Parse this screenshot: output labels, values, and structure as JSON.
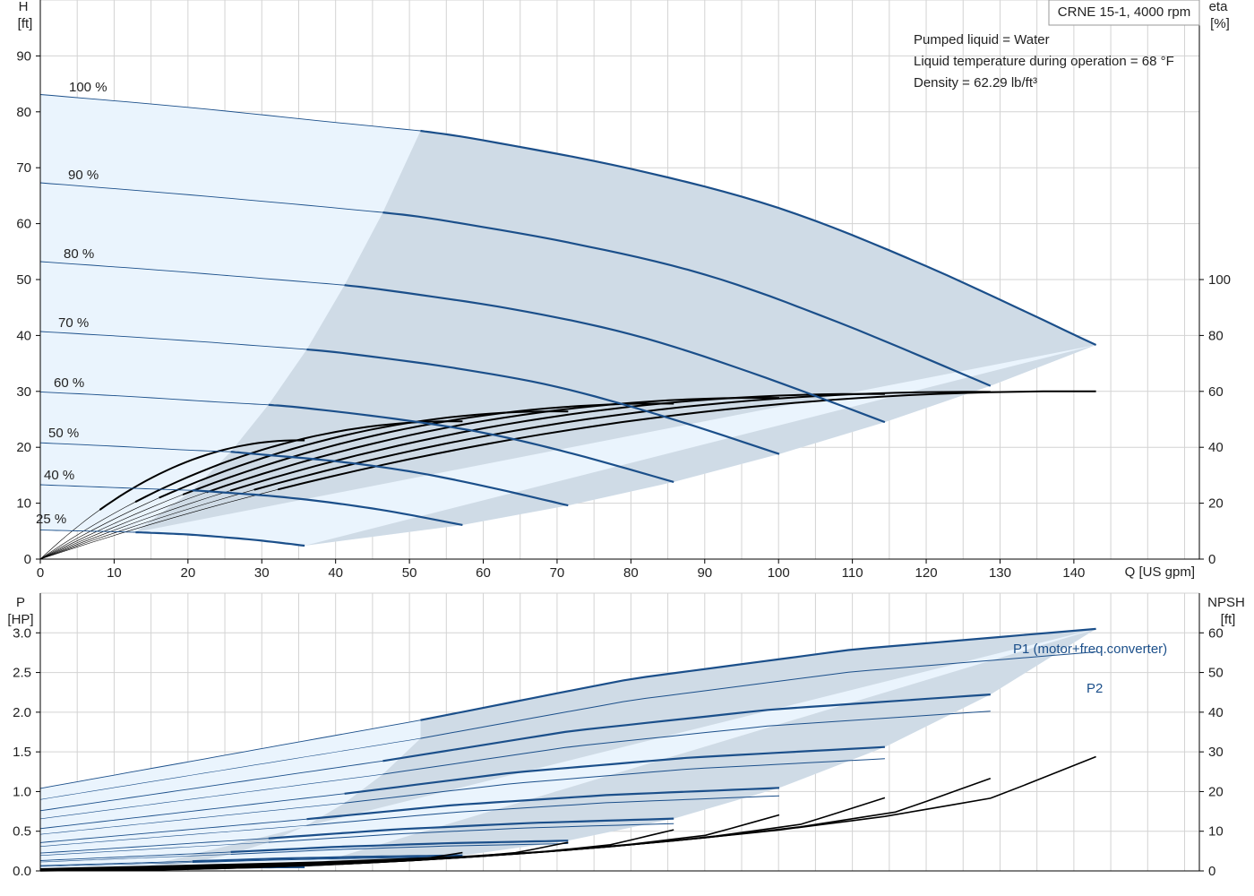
{
  "chart_data": [
    {
      "type": "line",
      "title": "CRNE 15-1, 4000 rpm",
      "notes": [
        "Pumped liquid = Water",
        "Liquid temperature during operation = 68 °F",
        "Density = 62.29 lb/ft³"
      ],
      "xlabel": "Q [US gpm]",
      "ylabel": "H [ft]",
      "ylabel_unit": "H",
      "ylabel_unit2": "[ft]",
      "y2label": "eta [%]",
      "y2label_unit": "eta",
      "y2label_unit2": "[%]",
      "xlim": [
        0,
        157
      ],
      "ylim": [
        0,
        100
      ],
      "y2lim": [
        0,
        200
      ],
      "x_ticks": [
        0,
        10,
        20,
        30,
        40,
        50,
        60,
        70,
        80,
        90,
        100,
        110,
        120,
        130,
        140
      ],
      "x_tick_labels": [
        "0",
        "10",
        "20",
        "30",
        "40",
        "50",
        "60",
        "70",
        "80",
        "90",
        "100",
        "110",
        "120",
        "130",
        "140"
      ],
      "y_ticks": [
        0,
        10,
        20,
        30,
        40,
        50,
        60,
        70,
        80,
        90
      ],
      "y_tick_labels": [
        "0",
        "10",
        "20",
        "30",
        "40",
        "50",
        "60",
        "70",
        "80",
        "90"
      ],
      "y2_ticks": [
        0,
        20,
        40,
        60,
        80,
        100
      ],
      "y2_tick_labels": [
        "0",
        "20",
        "40",
        "60",
        "80",
        "100"
      ],
      "grid": true,
      "speed_labels": [
        "100 %",
        "90 %",
        "80 %",
        "70 %",
        "60 %",
        "50 %",
        "40 %",
        "25 %"
      ],
      "head_curves": [
        {
          "name": "100 %",
          "speed": 1.0,
          "x": [
            0,
            20,
            40,
            51.5,
            60,
            80,
            100,
            120,
            143
          ],
          "y": [
            83.1,
            80.8,
            78.1,
            76.6,
            74.9,
            69.8,
            62.8,
            52.4,
            38.3
          ]
        },
        {
          "name": "90 %",
          "speed": 0.9,
          "x": [
            0,
            18,
            36,
            46.4,
            54,
            72,
            90,
            108,
            128.7
          ],
          "y": [
            67.3,
            65.4,
            63.3,
            62.0,
            60.7,
            56.5,
            50.9,
            42.4,
            31.0
          ]
        },
        {
          "name": "80 %",
          "speed": 0.8,
          "x": [
            0,
            16,
            32,
            41.2,
            48,
            64,
            80,
            96,
            114.4
          ],
          "y": [
            53.2,
            51.7,
            50.0,
            49.0,
            47.9,
            44.7,
            40.2,
            33.5,
            24.5
          ]
        },
        {
          "name": "70 %",
          "speed": 0.7,
          "x": [
            0,
            14,
            28,
            36.1,
            42,
            56,
            70,
            84,
            100.1
          ],
          "y": [
            40.7,
            39.6,
            38.3,
            37.5,
            36.7,
            34.2,
            30.8,
            25.7,
            18.8
          ]
        },
        {
          "name": "60 %",
          "speed": 0.6,
          "x": [
            0,
            12,
            24,
            30.9,
            36,
            48,
            60,
            72,
            85.8
          ],
          "y": [
            29.9,
            29.1,
            28.1,
            27.6,
            27.0,
            25.1,
            22.6,
            18.9,
            13.8
          ]
        },
        {
          "name": "50 %",
          "speed": 0.5,
          "x": [
            0,
            10,
            20,
            25.8,
            30,
            40,
            50,
            60,
            71.5
          ],
          "y": [
            20.8,
            20.2,
            19.5,
            19.2,
            18.7,
            17.5,
            15.7,
            13.1,
            9.6
          ]
        },
        {
          "name": "40 %",
          "speed": 0.4,
          "x": [
            0,
            8,
            16,
            20.6,
            24,
            32,
            40,
            48,
            57.2
          ],
          "y": [
            13.3,
            12.9,
            12.5,
            12.3,
            12.0,
            11.2,
            10.0,
            8.4,
            6.1
          ]
        },
        {
          "name": "25 %",
          "speed": 0.25,
          "x": [
            0,
            5,
            10,
            12.9,
            15,
            20,
            25,
            30,
            35.8
          ],
          "y": [
            5.2,
            5.05,
            4.9,
            4.8,
            4.7,
            4.4,
            3.9,
            3.3,
            2.4
          ]
        }
      ]
    },
    {
      "type": "line",
      "xlabel": "",
      "ylabel": "P [HP]",
      "ylabel_unit": "P",
      "ylabel_unit2": "[HP]",
      "y2label": "NPSH [ft]",
      "y2label_unit": "NPSH",
      "y2label_unit2": "[ft]",
      "xlim": [
        0,
        157
      ],
      "ylim": [
        0,
        3.5
      ],
      "y2lim": [
        0,
        70
      ],
      "y_ticks": [
        0,
        0.5,
        1.0,
        1.5,
        2.0,
        2.5,
        3.0
      ],
      "y_tick_labels": [
        "0.0",
        "0.5",
        "1.0",
        "1.5",
        "2.0",
        "2.5",
        "3.0"
      ],
      "y2_ticks": [
        0,
        10,
        20,
        30,
        40,
        50,
        60
      ],
      "y2_tick_labels": [
        "0",
        "10",
        "20",
        "30",
        "40",
        "50",
        "60"
      ],
      "grid": true,
      "series": [
        {
          "name": "P1 (motor+freq.converter)",
          "x": [
            0,
            51.5,
            80,
            110,
            143
          ],
          "y": [
            1.04,
            1.9,
            2.42,
            2.79,
            3.05
          ]
        },
        {
          "name": "P2",
          "x": [
            0,
            51.5,
            80,
            110,
            143
          ],
          "y": [
            0.9,
            1.67,
            2.15,
            2.51,
            2.76
          ]
        }
      ],
      "npsh_curve": {
        "x": [
          0,
          36,
          57,
          72,
          86,
          100,
          114,
          129,
          143
        ],
        "y": [
          0.5,
          2.1,
          3.6,
          5.3,
          7.6,
          10.3,
          13.6,
          18.4,
          28.8
        ]
      }
    }
  ]
}
